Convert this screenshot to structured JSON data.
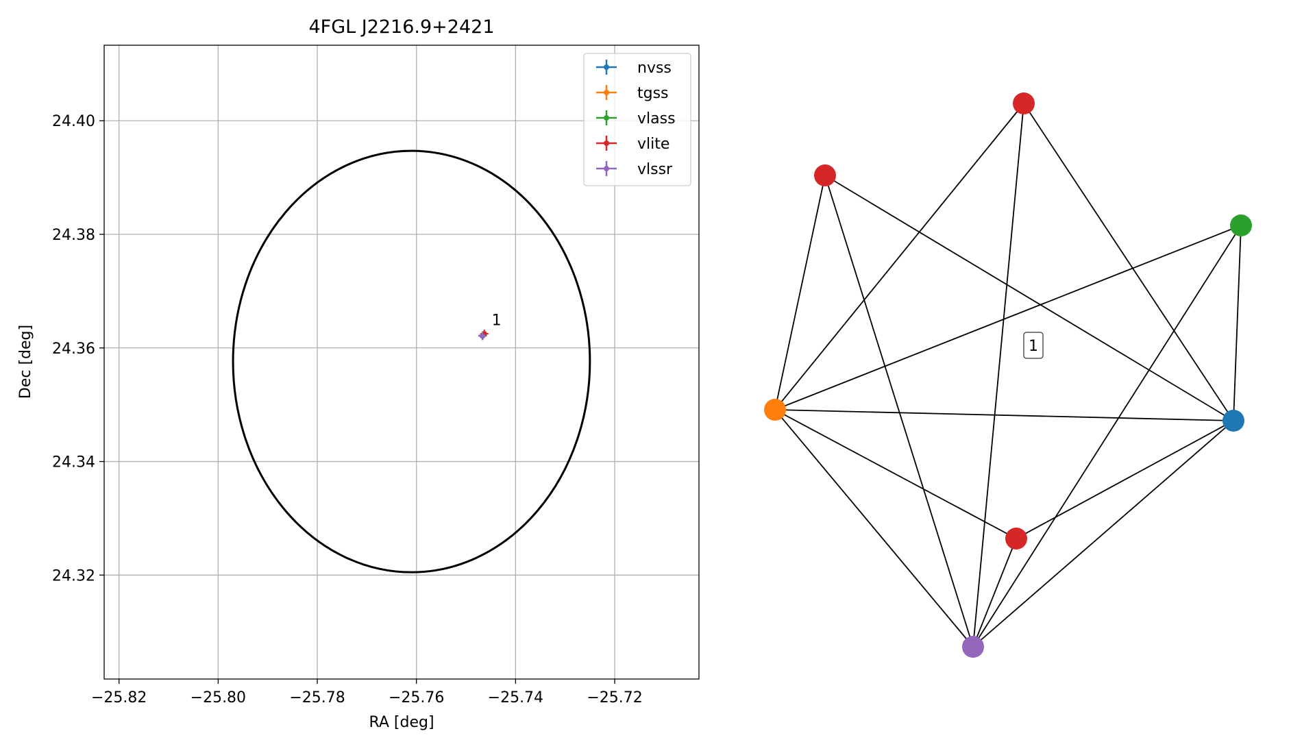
{
  "chart_data": [
    {
      "type": "scatter",
      "title": "4FGL J2216.9+2421",
      "xlabel": "RA [deg]",
      "ylabel": "Dec [deg]",
      "xlim": [
        -25.823,
        -25.703
      ],
      "ylim": [
        24.3017,
        24.4133
      ],
      "xticks": [
        -25.82,
        -25.8,
        -25.78,
        -25.76,
        -25.74,
        -25.72
      ],
      "xtick_labels": [
        "−25.82",
        "−25.80",
        "−25.78",
        "−25.76",
        "−25.74",
        "−25.72"
      ],
      "yticks": [
        24.32,
        24.34,
        24.36,
        24.38,
        24.4
      ],
      "ytick_labels": [
        "24.32",
        "24.34",
        "24.36",
        "24.38",
        "24.40"
      ],
      "grid": true,
      "legend_position": "top-right",
      "ellipse": {
        "center": [
          -25.761,
          24.3576
        ],
        "semi_axis_ra": 0.036,
        "semi_axis_dec": 0.0371,
        "color": "#000000"
      },
      "series": [
        {
          "name": "nvss",
          "color": "#1f77b4",
          "x": [
            -25.7466
          ],
          "y": [
            24.3622
          ]
        },
        {
          "name": "tgss",
          "color": "#ff7f0e",
          "x": [
            -25.7466
          ],
          "y": [
            24.3622
          ]
        },
        {
          "name": "vlass",
          "color": "#2ca02c",
          "x": [
            -25.7466
          ],
          "y": [
            24.3622
          ]
        },
        {
          "name": "vlite",
          "color": "#d62728",
          "x": [
            -25.7463
          ],
          "y": [
            24.3625
          ]
        },
        {
          "name": "vlssr",
          "color": "#9467bd",
          "x": [
            -25.7467
          ],
          "y": [
            24.3621
          ]
        }
      ],
      "annotations": [
        {
          "text": "1",
          "x": -25.7448,
          "y": 24.364
        }
      ]
    },
    {
      "type": "network",
      "nodes": [
        {
          "id": "vlite-top",
          "color": "#d62728"
        },
        {
          "id": "vlite-left",
          "color": "#d62728"
        },
        {
          "id": "vlass",
          "color": "#2ca02c"
        },
        {
          "id": "tgss",
          "color": "#ff7f0e"
        },
        {
          "id": "nvss",
          "color": "#1f77b4"
        },
        {
          "id": "vlite-bottom",
          "color": "#d62728"
        },
        {
          "id": "vlssr",
          "color": "#9467bd"
        }
      ],
      "edges": [
        [
          "vlite-left",
          "tgss"
        ],
        [
          "vlite-left",
          "vlssr"
        ],
        [
          "vlite-left",
          "nvss"
        ],
        [
          "vlite-top",
          "tgss"
        ],
        [
          "vlite-top",
          "vlssr"
        ],
        [
          "vlite-top",
          "nvss"
        ],
        [
          "vlass",
          "tgss"
        ],
        [
          "vlass",
          "vlssr"
        ],
        [
          "vlass",
          "nvss"
        ],
        [
          "tgss",
          "nvss"
        ],
        [
          "tgss",
          "vlite-bottom"
        ],
        [
          "tgss",
          "vlssr"
        ],
        [
          "nvss",
          "vlite-bottom"
        ],
        [
          "nvss",
          "vlssr"
        ],
        [
          "vlite-bottom",
          "vlssr"
        ]
      ],
      "label": "1"
    }
  ]
}
